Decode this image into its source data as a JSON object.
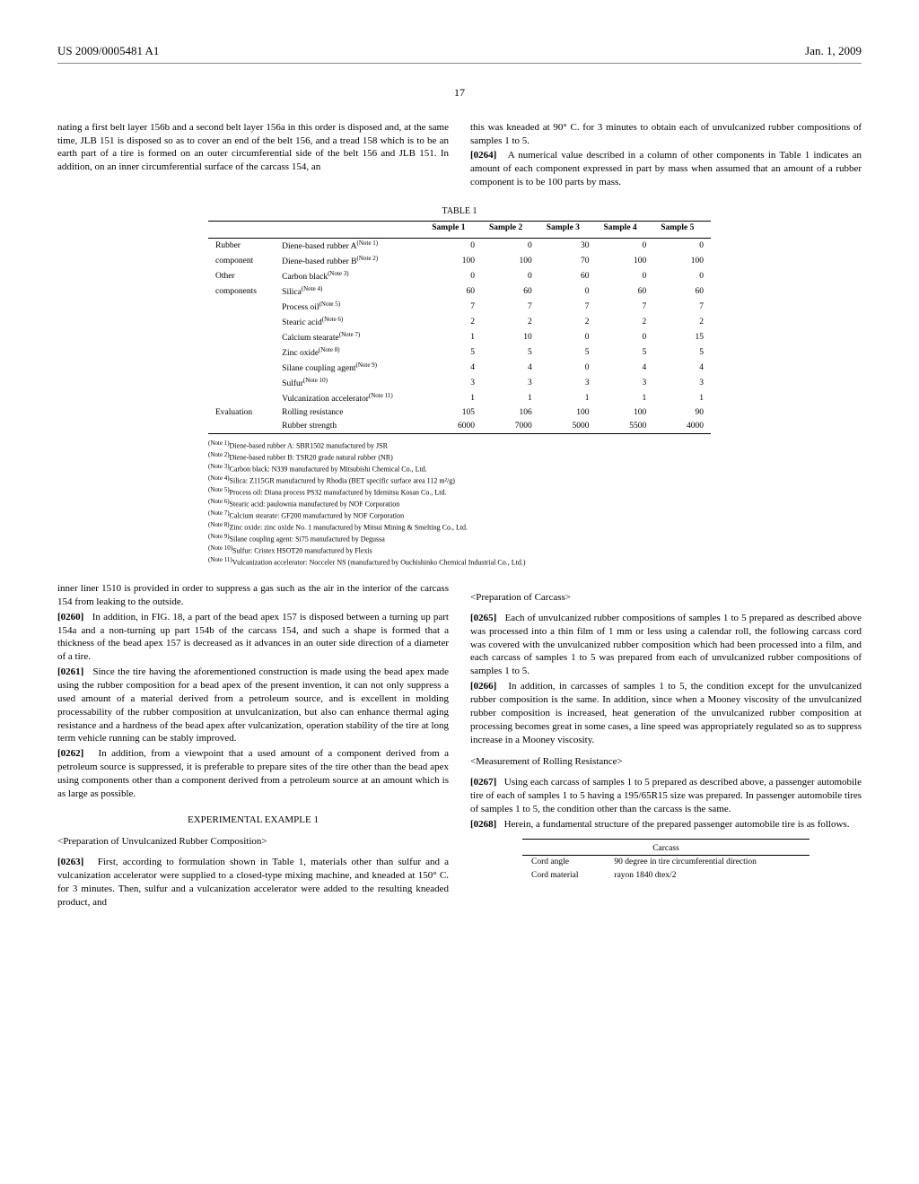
{
  "header": {
    "pub_number": "US 2009/0005481 A1",
    "pub_date": "Jan. 1, 2009",
    "page_number": "17"
  },
  "top_left_para": "nating a first belt layer 156b and a second belt layer 156a in this order is disposed and, at the same time, JLB 151 is disposed so as to cover an end of the belt 156, and a tread 158 which is to be an earth part of a tire is formed on an outer circumferential side of the belt 156 and JLB 151. In addition, on an inner circumferential surface of the carcass 154, an",
  "top_right_para1": "this was kneaded at 90° C. for 3 minutes to obtain each of unvulcanized rubber compositions of samples 1 to 5.",
  "top_right_para2_num": "[0264]",
  "top_right_para2": "A numerical value described in a column of other components in Table 1 indicates an amount of each component expressed in part by mass when assumed that an amount of a rubber component is to be 100 parts by mass.",
  "table1": {
    "title": "TABLE 1",
    "headers": [
      "",
      "",
      "Sample 1",
      "Sample 2",
      "Sample 3",
      "Sample 4",
      "Sample 5"
    ],
    "rows": [
      {
        "group": "Rubber",
        "label": "Diene-based rubber A",
        "note": "(Note 1)",
        "v": [
          "0",
          "0",
          "30",
          "0",
          "0"
        ]
      },
      {
        "group": "component",
        "label": "Diene-based rubber B",
        "note": "(Note 2)",
        "v": [
          "100",
          "100",
          "70",
          "100",
          "100"
        ]
      },
      {
        "group": "Other",
        "label": "Carbon black",
        "note": "(Note 3)",
        "v": [
          "0",
          "0",
          "60",
          "0",
          "0"
        ]
      },
      {
        "group": "components",
        "label": "Silica",
        "note": "(Note 4)",
        "v": [
          "60",
          "60",
          "0",
          "60",
          "60"
        ]
      },
      {
        "group": "",
        "label": "Process oil",
        "note": "(Note 5)",
        "v": [
          "7",
          "7",
          "7",
          "7",
          "7"
        ]
      },
      {
        "group": "",
        "label": "Stearic acid",
        "note": "(Note 6)",
        "v": [
          "2",
          "2",
          "2",
          "2",
          "2"
        ]
      },
      {
        "group": "",
        "label": "Calcium stearate",
        "note": "(Note  7)",
        "v": [
          "1",
          "10",
          "0",
          "0",
          "15"
        ]
      },
      {
        "group": "",
        "label": "Zinc oxide",
        "note": "(Note 8)",
        "v": [
          "5",
          "5",
          "5",
          "5",
          "5"
        ]
      },
      {
        "group": "",
        "label": "Silane coupling agent",
        "note": "(Note 9)",
        "v": [
          "4",
          "4",
          "0",
          "4",
          "4"
        ]
      },
      {
        "group": "",
        "label": "Sulfur",
        "note": "(Note 10)",
        "v": [
          "3",
          "3",
          "3",
          "3",
          "3"
        ]
      },
      {
        "group": "",
        "label": "Vulcanization accelerator",
        "note": "(Note 11)",
        "v": [
          "1",
          "1",
          "1",
          "1",
          "1"
        ]
      },
      {
        "group": "Evaluation",
        "label": "Rolling resistance",
        "note": "",
        "v": [
          "105",
          "106",
          "100",
          "100",
          "90"
        ]
      },
      {
        "group": "",
        "label": "Rubber strength",
        "note": "",
        "v": [
          "6000",
          "7000",
          "5000",
          "5500",
          "4000"
        ]
      }
    ]
  },
  "footnotes": [
    {
      "n": "(Note 1)",
      "t": "Diene-based rubber A: SBR1502 manufactured by JSR"
    },
    {
      "n": "(Note 2)",
      "t": "Diene-based rubber B: TSR20 grade natural rubber (NR)"
    },
    {
      "n": "(Note 3)",
      "t": "Carbon black: N339 manufactured by Mitsubishi Chemical Co., Ltd."
    },
    {
      "n": "(Note 4)",
      "t": "Silica: Z115GR manufactured by Rhodia (BET specific surface area 112 m²/g)"
    },
    {
      "n": "(Note 5)",
      "t": "Process oil: Diana process PS32 manufactured by Idemitsu Kosan Co., Ltd."
    },
    {
      "n": "(Note 6)",
      "t": "Stearic acid: paulownia manufactured by NOF Corporation"
    },
    {
      "n": "(Note 7)",
      "t": "Calcium stearate: GF200 manufactured by NOF Corporation"
    },
    {
      "n": "(Note 8)",
      "t": "Zinc oxide: zinc oxide No. 1 manufactured by Mitsui Mining & Smelting Co., Ltd."
    },
    {
      "n": "(Note 9)",
      "t": "Silane coupling agent: Si75 manufactured by Degussa"
    },
    {
      "n": "(Note 10)",
      "t": "Sulfur: Cristex HSOT20 manufactured by Flexis"
    },
    {
      "n": "(Note 11)",
      "t": "Vulcanization accelerator: Nocceler NS (manufactured by Ouchishinko Chemical Industrial Co., Ltd.)"
    }
  ],
  "left_col": {
    "p_lead": "inner liner 1510 is provided in order to suppress a gas such as the air in the interior of the carcass 154 from leaking to the outside.",
    "p0260_num": "[0260]",
    "p0260": "In addition, in FIG. 18, a part of the bead apex 157 is disposed between a turning up part 154a and a non-turning up part 154b of the carcass 154, and such a shape is formed that a thickness of the bead apex 157 is decreased as it advances in an outer side direction of a diameter of a tire.",
    "p0261_num": "[0261]",
    "p0261": "Since the tire having the aforementioned construction is made using the bead apex made using the rubber composition for a bead apex of the present invention, it can not only suppress a used amount of a material derived from a petroleum source, and is excellent in molding processability of the rubber composition at unvulcanization, but also can enhance thermal aging resistance and a hardness of the bead apex after vulcanization, operation stability of the tire at long term vehicle running can be stably improved.",
    "p0262_num": "[0262]",
    "p0262": "In addition, from a viewpoint that a used amount of a component derived from a petroleum source is suppressed, it is preferable to prepare sites of the tire other than the bead apex using components other than a component derived from a petroleum source at an amount which is as large as possible.",
    "exp_heading": "EXPERIMENTAL EXAMPLE 1",
    "sub1": "<Preparation of Unvulcanized Rubber Composition>",
    "p0263_num": "[0263]",
    "p0263": "First, according to formulation shown in Table 1, materials other than sulfur and a vulcanization accelerator were supplied to a closed-type mixing machine, and kneaded at 150° C. for 3 minutes. Then, sulfur and a vulcanization accelerator were added to the resulting kneaded product, and"
  },
  "right_col": {
    "sub1": "<Preparation of Carcass>",
    "p0265_num": "[0265]",
    "p0265": "Each of unvulcanized rubber compositions of samples 1 to 5 prepared as described above was processed into a thin film of 1 mm or less using a calendar roll, the following carcass cord was covered with the unvulcanized rubber composition which had been processed into a film, and each carcass of samples 1 to 5 was prepared from each of unvulcanized rubber compositions of samples 1 to 5.",
    "p0266_num": "[0266]",
    "p0266": "In addition, in carcasses of samples 1 to 5, the condition except for the unvulcanized rubber composition is the same. In addition, since when a Mooney viscosity of the unvulcanized rubber composition is increased, heat generation of the unvulcanized rubber composition at processing becomes great in some cases, a line speed was appropriately regulated so as to suppress increase in a Mooney viscosity.",
    "sub2": "<Measurement of Rolling Resistance>",
    "p0267_num": "[0267]",
    "p0267": "Using each carcass of samples 1 to 5 prepared as described above, a passenger automobile tire of each of samples 1 to 5 having a 195/65R15 size was prepared. In passenger automobile tires of samples 1 to 5, the condition other than the carcass is the same.",
    "p0268_num": "[0268]",
    "p0268": "Herein, a fundamental structure of the prepared passenger automobile tire is as follows."
  },
  "carcass_table": {
    "title": "Carcass",
    "rows": [
      {
        "k": "Cord angle",
        "v": "90 degree in tire circumferential direction"
      },
      {
        "k": "Cord material",
        "v": "rayon 1840 dtex/2"
      }
    ]
  }
}
